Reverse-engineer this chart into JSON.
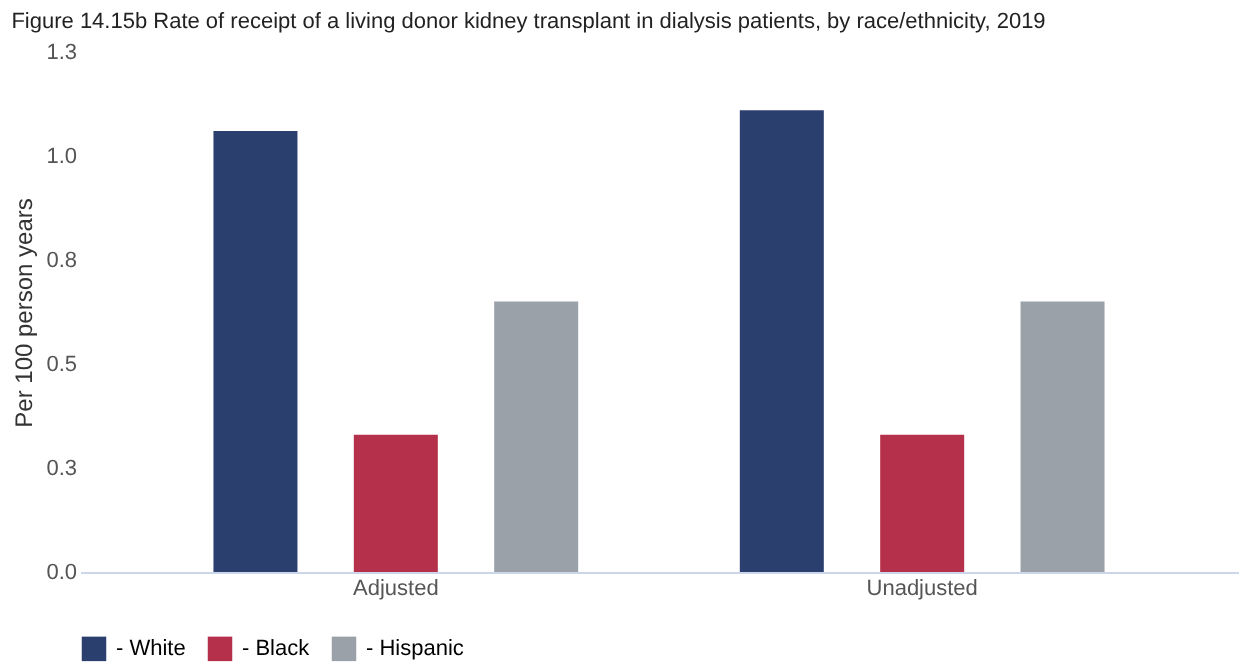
{
  "chart_data": {
    "type": "bar",
    "title": "Figure 14.15b  Rate of receipt of a living donor kidney transplant in dialysis patients, by race/ethnicity, 2019",
    "categories": [
      "Adjusted",
      "Unadjusted"
    ],
    "ylabel": "Per 100 person years",
    "series": [
      {
        "name": "- White",
        "color": "#2b3f6e",
        "values": [
          1.06,
          1.11
        ]
      },
      {
        "name": "- Black",
        "color": "#b5304a",
        "values": [
          0.33,
          0.33
        ]
      },
      {
        "name": "- Hispanic",
        "color": "#9aa1a8",
        "values": [
          0.65,
          0.65
        ]
      }
    ],
    "ylim": [
      0,
      1.25
    ],
    "yticks": [
      {
        "value": 0,
        "label": "0.0"
      },
      {
        "value": 0.25,
        "label": "0.3"
      },
      0.5,
      {
        "value": 0.75,
        "label": "0.8"
      },
      {
        "value": 1.0,
        "label": "1.0"
      },
      {
        "value": 1.25,
        "label": "1.3"
      }
    ],
    "grid": false,
    "legend": "bottom"
  }
}
